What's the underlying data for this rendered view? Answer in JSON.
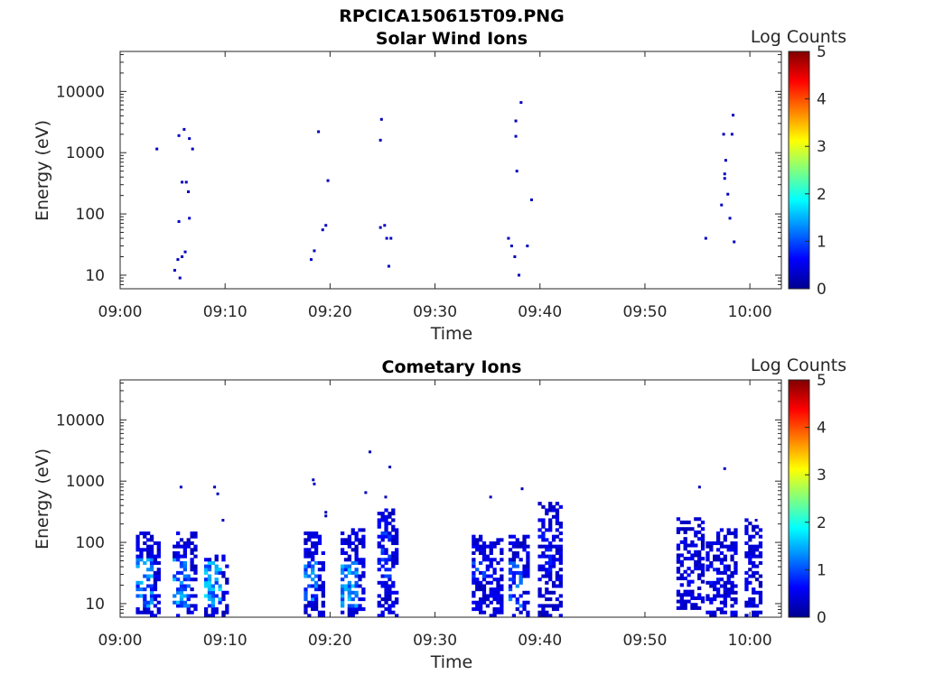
{
  "figure_title": "RPCICA150615T09.PNG",
  "chart_data": [
    {
      "type": "heatmap",
      "title": "Solar Wind Ions",
      "xlabel": "Time",
      "ylabel": "Energy (eV)",
      "yscale": "log",
      "ylim": [
        6,
        45000
      ],
      "xlim": [
        "09:00",
        "10:03"
      ],
      "xticks": [
        "09:00",
        "09:10",
        "09:20",
        "09:30",
        "09:40",
        "09:50",
        "10:00"
      ],
      "yticks": [
        "10",
        "100",
        "1000",
        "10000"
      ],
      "colorbar": {
        "label": "Log Counts",
        "min": 0,
        "max": 5,
        "ticks": [
          "0",
          "1",
          "2",
          "3",
          "4",
          "5"
        ],
        "colormap": "jet"
      },
      "cells": [
        [
          "09:03.5",
          1150,
          0.3
        ],
        [
          "09:05.6",
          1900,
          0.3
        ],
        [
          "09:06.1",
          2400,
          0.3
        ],
        [
          "09:06.6",
          1700,
          0.3
        ],
        [
          "09:06.9",
          1150,
          0.3
        ],
        [
          "09:05.9",
          330,
          0.3
        ],
        [
          "09:06.3",
          330,
          0.3
        ],
        [
          "09:06.5",
          230,
          0.3
        ],
        [
          "09:05.6",
          75,
          0.3
        ],
        [
          "09:06.6",
          85,
          0.3
        ],
        [
          "09:05.2",
          12,
          0.3
        ],
        [
          "09:05.5",
          18,
          0.3
        ],
        [
          "09:05.7",
          9,
          0.3
        ],
        [
          "09:05.9",
          20,
          0.3
        ],
        [
          "09:06.2",
          24,
          0.3
        ],
        [
          "09:18.2",
          18,
          0.3
        ],
        [
          "09:18.5",
          25,
          0.3
        ],
        [
          "09:18.9",
          2200,
          0.3
        ],
        [
          "09:19.3",
          55,
          0.3
        ],
        [
          "09:19.6",
          65,
          0.3
        ],
        [
          "09:19.8",
          350,
          0.3
        ],
        [
          "09:24.8",
          60,
          0.3
        ],
        [
          "09:24.9",
          3500,
          0.3
        ],
        [
          "09:24.8",
          1600,
          0.3
        ],
        [
          "09:25.2",
          65,
          0.3
        ],
        [
          "09:25.4",
          40,
          0.3
        ],
        [
          "09:25.6",
          14,
          0.3
        ],
        [
          "09:25.8",
          40,
          0.3
        ],
        [
          "09:37.0",
          40,
          0.3
        ],
        [
          "09:37.3",
          30,
          0.3
        ],
        [
          "09:37.6",
          20,
          0.3
        ],
        [
          "09:37.7",
          1850,
          0.3
        ],
        [
          "09:37.7",
          3300,
          0.3
        ],
        [
          "09:37.8",
          500,
          0.3
        ],
        [
          "09:38.0",
          10,
          0.3
        ],
        [
          "09:38.2",
          6600,
          0.3
        ],
        [
          "09:38.8",
          30,
          0.3
        ],
        [
          "09:39.2",
          170,
          0.3
        ],
        [
          "09:55.8",
          40,
          0.3
        ],
        [
          "09:57.3",
          140,
          0.3
        ],
        [
          "09:57.5",
          2000,
          0.3
        ],
        [
          "09:57.7",
          750,
          0.3
        ],
        [
          "09:57.6",
          450,
          0.3
        ],
        [
          "09:57.6",
          380,
          0.3
        ],
        [
          "09:57.9",
          210,
          0.3
        ],
        [
          "09:58.1",
          85,
          0.3
        ],
        [
          "09:58.3",
          2000,
          0.3
        ],
        [
          "09:58.4",
          4100,
          0.3
        ],
        [
          "09:58.5",
          35,
          0.3
        ]
      ]
    },
    {
      "type": "heatmap",
      "title": "Cometary Ions",
      "xlabel": "Time",
      "ylabel": "Energy (eV)",
      "yscale": "log",
      "ylim": [
        6,
        45000
      ],
      "xlim": [
        "09:00",
        "10:03"
      ],
      "xticks": [
        "09:00",
        "09:10",
        "09:20",
        "09:30",
        "09:40",
        "09:50",
        "10:00"
      ],
      "yticks": [
        "10",
        "100",
        "1000",
        "10000"
      ],
      "colorbar": {
        "label": "Log Counts",
        "min": 0,
        "max": 5,
        "ticks": [
          "0",
          "1",
          "2",
          "3",
          "4",
          "5"
        ],
        "colormap": "jet"
      },
      "clusters": [
        {
          "t": [
            "09:01.5",
            "09:03.7"
          ],
          "e": [
            6,
            150
          ],
          "core": [
            8,
            50
          ],
          "peak": 1.6
        },
        {
          "t": [
            "09:05.0",
            "09:07.0"
          ],
          "e": [
            6,
            150
          ],
          "core": [
            8,
            50
          ],
          "peak": 1.6
        },
        {
          "t": [
            "09:08.0",
            "09:10.3"
          ],
          "e": [
            6,
            60
          ],
          "core": [
            8,
            45
          ],
          "peak": 1.8
        },
        {
          "t": [
            "09:17.5",
            "09:19.3"
          ],
          "e": [
            6,
            150
          ],
          "core": [
            10,
            50
          ],
          "peak": 1.5
        },
        {
          "t": [
            "09:21.0",
            "09:23.0"
          ],
          "e": [
            6,
            160
          ],
          "core": [
            8,
            45
          ],
          "peak": 1.7
        },
        {
          "t": [
            "09:24.5",
            "09:26.2"
          ],
          "e": [
            6,
            330
          ],
          "core": [
            25,
            200
          ],
          "peak": 1.0
        },
        {
          "t": [
            "09:33.5",
            "09:36.5"
          ],
          "e": [
            6,
            130
          ],
          "core": [
            25,
            45
          ],
          "peak": 1.1
        },
        {
          "t": [
            "09:37.0",
            "09:38.8"
          ],
          "e": [
            6,
            130
          ],
          "core": [
            8,
            45
          ],
          "peak": 1.3
        },
        {
          "t": [
            "09:39.8",
            "09:42.0"
          ],
          "e": [
            6,
            450
          ],
          "core": [
            30,
            150
          ],
          "peak": 0.8
        },
        {
          "t": [
            "09:53.0",
            "09:55.5"
          ],
          "e": [
            8,
            230
          ],
          "core": [
            20,
            40
          ],
          "peak": 0.7
        },
        {
          "t": [
            "09:55.8",
            "09:58.5"
          ],
          "e": [
            6,
            160
          ],
          "core": [
            20,
            45
          ],
          "peak": 0.8
        },
        {
          "t": [
            "09:59.5",
            "10:01.0"
          ],
          "e": [
            6,
            230
          ],
          "core": [
            8,
            15
          ],
          "peak": 0.6
        }
      ],
      "cells": [
        [
          "09:05.8",
          800,
          0.3
        ],
        [
          "09:09.0",
          800,
          0.3
        ],
        [
          "09:09.3",
          620,
          0.3
        ],
        [
          "09:09.8",
          230,
          0.3
        ],
        [
          "09:18.4",
          1050,
          0.3
        ],
        [
          "09:18.5",
          900,
          0.3
        ],
        [
          "09:19.6",
          270,
          0.3
        ],
        [
          "09:19.6",
          310,
          0.3
        ],
        [
          "09:23.4",
          650,
          0.3
        ],
        [
          "09:23.8",
          3000,
          0.3
        ],
        [
          "09:25.3",
          550,
          0.3
        ],
        [
          "09:25.7",
          1700,
          0.3
        ],
        [
          "09:35.3",
          550,
          0.3
        ],
        [
          "09:38.3",
          750,
          0.3
        ],
        [
          "09:55.2",
          800,
          0.3
        ],
        [
          "09:57.6",
          1600,
          0.3
        ],
        [
          "10:00.6",
          230,
          0.3
        ]
      ]
    }
  ]
}
